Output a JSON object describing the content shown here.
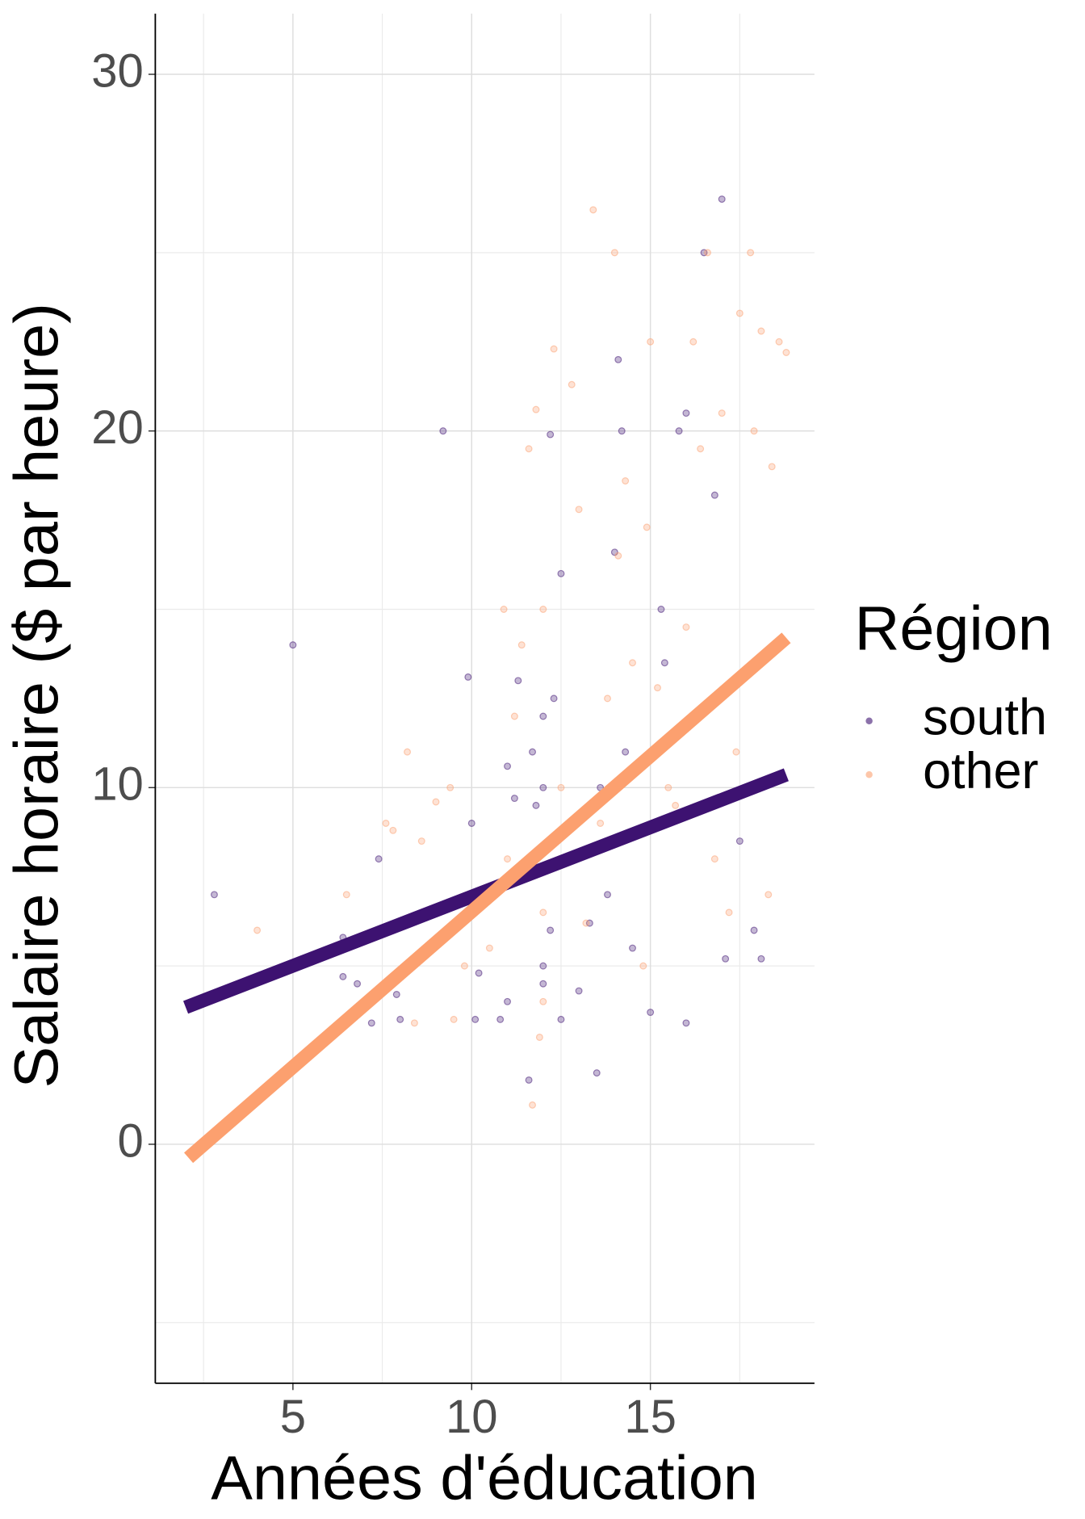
{
  "chart_data": {
    "type": "scatter",
    "x_label": "Années d'éducation",
    "y_label": "Salaire horaire ($ par heure)",
    "legend_title": "Région",
    "legend_position": "right",
    "grid": true,
    "xlim": [
      1.15,
      19.59
    ],
    "ylim": [
      -6.7,
      31.7
    ],
    "xticks": [
      5,
      10,
      15
    ],
    "yticks": [
      0,
      10,
      20,
      30
    ],
    "x_minor_ticks": [
      2.5,
      7.5,
      12.5,
      17.5
    ],
    "y_minor_ticks": [
      -5,
      5,
      15,
      25
    ],
    "point_opacity": 0.3,
    "series": [
      {
        "name": "south",
        "color": "#3d1271",
        "x": [
          2.8,
          5,
          6.4,
          6.4,
          6.8,
          7.2,
          7.4,
          7.9,
          8,
          9.2,
          9.9,
          10,
          10.1,
          10.2,
          10.8,
          11,
          11,
          11.2,
          11.3,
          11.6,
          11.7,
          11.8,
          12,
          12,
          12,
          12,
          12.2,
          12.2,
          12.3,
          12.5,
          12.5,
          13,
          13.3,
          13.5,
          13.6,
          13.8,
          14,
          14.1,
          14.2,
          14.3,
          14.5,
          15,
          15.3,
          15.4,
          15.8,
          16,
          16,
          16.5,
          16.8,
          17,
          17.1,
          17.5,
          17.9,
          18.1
        ],
        "values": [
          7,
          14,
          5.8,
          4.7,
          4.5,
          3.4,
          8,
          4.2,
          3.5,
          20,
          13.1,
          9,
          3.5,
          4.8,
          3.5,
          4,
          10.6,
          9.7,
          13,
          1.8,
          11,
          9.5,
          12,
          10,
          5,
          4.5,
          6,
          19.9,
          12.5,
          16,
          3.5,
          4.3,
          6.2,
          2,
          10,
          7,
          16.6,
          22,
          20,
          11,
          5.5,
          3.7,
          15,
          13.5,
          20,
          20.5,
          3.4,
          25,
          18.2,
          26.5,
          5.2,
          8.5,
          6,
          5.2
        ],
        "fit": {
          "x": [
            2.0,
            18.8
          ],
          "values": [
            3.84,
            10.36
          ]
        }
      },
      {
        "name": "other",
        "color": "#fca06f",
        "x": [
          4,
          6.5,
          7.6,
          7.8,
          8.2,
          8.4,
          8.6,
          9,
          9.4,
          9.5,
          9.8,
          10.5,
          10.9,
          11,
          11.2,
          11.4,
          11.6,
          11.7,
          11.8,
          11.9,
          12,
          12,
          12,
          12.3,
          12.5,
          12.8,
          13,
          13.2,
          13.4,
          13.6,
          13.8,
          14,
          14.1,
          14.3,
          14.5,
          14.8,
          14.9,
          15,
          15.2,
          15.5,
          15.7,
          16,
          16.2,
          16.4,
          16.6,
          16.8,
          17,
          17.2,
          17.5,
          17.8,
          17.9,
          18.1,
          18.4,
          18.6,
          18.8,
          18.3,
          17.4
        ],
        "values": [
          6,
          7,
          9,
          8.8,
          11,
          3.4,
          8.5,
          9.6,
          10,
          3.5,
          5,
          5.5,
          15,
          8,
          12,
          14,
          19.5,
          1.1,
          20.6,
          3,
          15,
          6.5,
          4,
          22.3,
          10,
          21.3,
          17.8,
          6.2,
          26.2,
          9,
          12.5,
          25,
          16.5,
          18.6,
          13.5,
          5,
          17.3,
          22.5,
          12.8,
          10,
          9.5,
          14.5,
          22.5,
          19.5,
          25,
          8,
          20.5,
          6.5,
          23.3,
          25,
          20,
          22.8,
          19,
          22.5,
          22.2,
          7,
          11
        ],
        "fit": {
          "x": [
            2.08,
            18.8
          ],
          "values": [
            -0.38,
            14.2
          ]
        }
      }
    ]
  }
}
